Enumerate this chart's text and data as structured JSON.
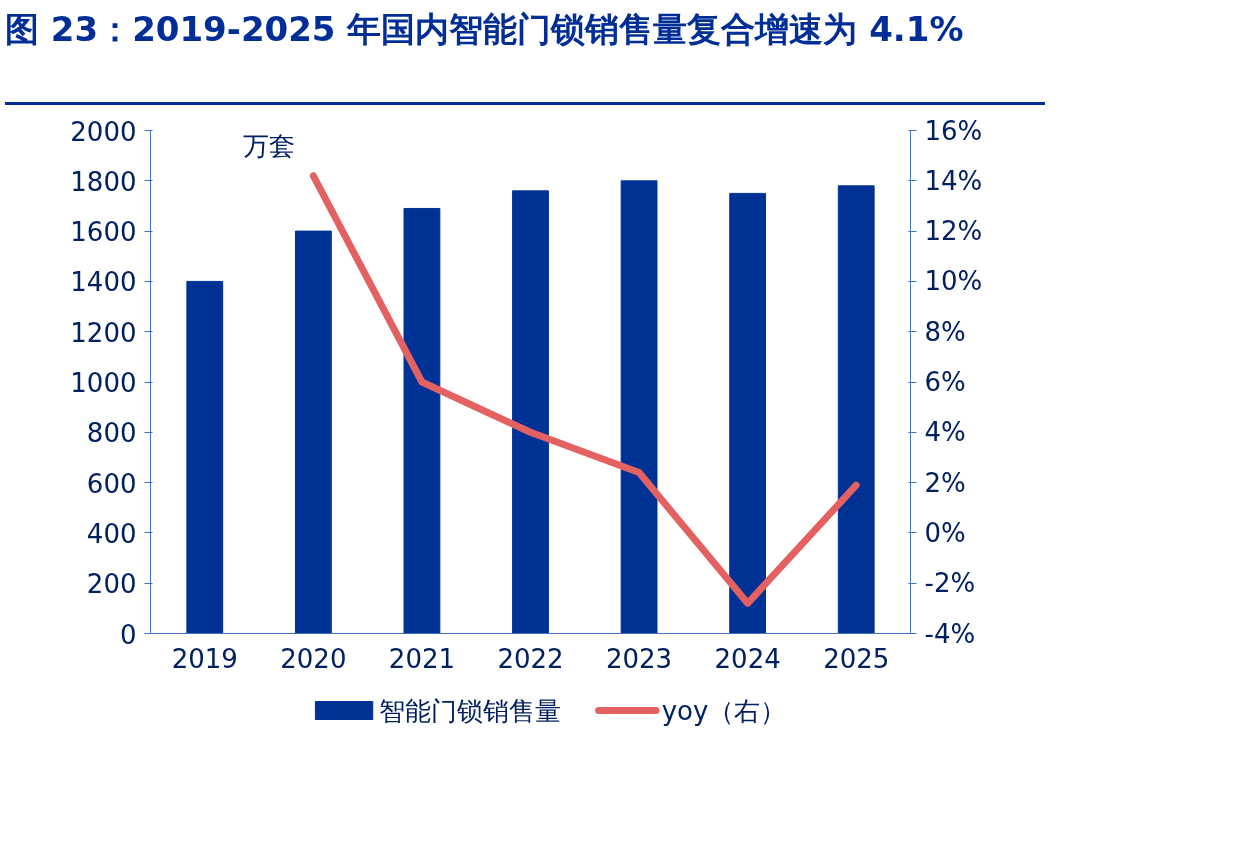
{
  "chart_data": {
    "type": "bar",
    "title": "图 23：2019-2025 年国内智能门锁销售量复合增速为 4.1%",
    "ylabel": "万套",
    "categories": [
      "2019",
      "2020",
      "2021",
      "2022",
      "2023",
      "2024",
      "2025"
    ],
    "series": [
      {
        "name": "智能门锁销售量",
        "color": "#003296",
        "values": [
          1400,
          1600,
          1690,
          1760,
          1800,
          1750,
          1780
        ]
      },
      {
        "name": "yoy（右）",
        "type": "line",
        "axis": "y2",
        "color": "#e46161",
        "values": [
          null,
          14.2,
          6.0,
          4.0,
          2.4,
          -2.8,
          1.9
        ]
      }
    ],
    "ylim": [
      0,
      2000
    ],
    "yticks": [
      0,
      200,
      400,
      600,
      800,
      1000,
      1200,
      1400,
      1600,
      1800,
      2000
    ],
    "y2lim": [
      -4,
      16
    ],
    "y2ticks": [
      {
        "value": -4,
        "label": "-4%"
      },
      {
        "value": -2,
        "label": "-2%"
      },
      {
        "value": 0,
        "label": "0%"
      },
      {
        "value": 2,
        "label": "2%"
      },
      {
        "value": 4,
        "label": "4%"
      },
      {
        "value": 6,
        "label": "6%"
      },
      {
        "value": 8,
        "label": "8%"
      },
      {
        "value": 10,
        "label": "10%"
      },
      {
        "value": 12,
        "label": "12%"
      },
      {
        "value": 14,
        "label": "14%"
      },
      {
        "value": 16,
        "label": "16%"
      }
    ],
    "grid": false,
    "legend": "bottom"
  }
}
